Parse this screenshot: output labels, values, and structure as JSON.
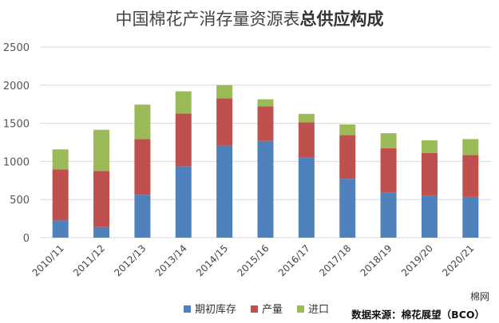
{
  "chart_data": {
    "type": "bar",
    "stacked": true,
    "title_regular": "中国棉花产消存量资源表",
    "title_bold": "总供应构成",
    "categories": [
      "2010/11",
      "2011/12",
      "2012/13",
      "2013/14",
      "2014/15",
      "2015/16",
      "2016/17",
      "2017/18",
      "2018/19",
      "2019/20",
      "2020/21"
    ],
    "series": [
      {
        "name": "期初库存",
        "color": "#4f81bd",
        "values": [
          226,
          139,
          563,
          935,
          1207,
          1269,
          1050,
          772,
          588,
          546,
          535
        ]
      },
      {
        "name": "产量",
        "color": "#c0504d",
        "values": [
          668,
          737,
          730,
          692,
          618,
          452,
          463,
          574,
          584,
          563,
          550
        ]
      },
      {
        "name": "进口",
        "color": "#9bbb59",
        "values": [
          264,
          539,
          452,
          292,
          175,
          94,
          111,
          139,
          198,
          167,
          208
        ]
      }
    ],
    "ylim": [
      0,
      2500
    ],
    "yticks": [
      0,
      500,
      1000,
      1500,
      2000,
      2500
    ],
    "grid": true,
    "legend_position": "bottom",
    "xlabel": "",
    "ylabel": ""
  },
  "source": "数据来源：棉花展望（BCO）",
  "brand": "棉网"
}
